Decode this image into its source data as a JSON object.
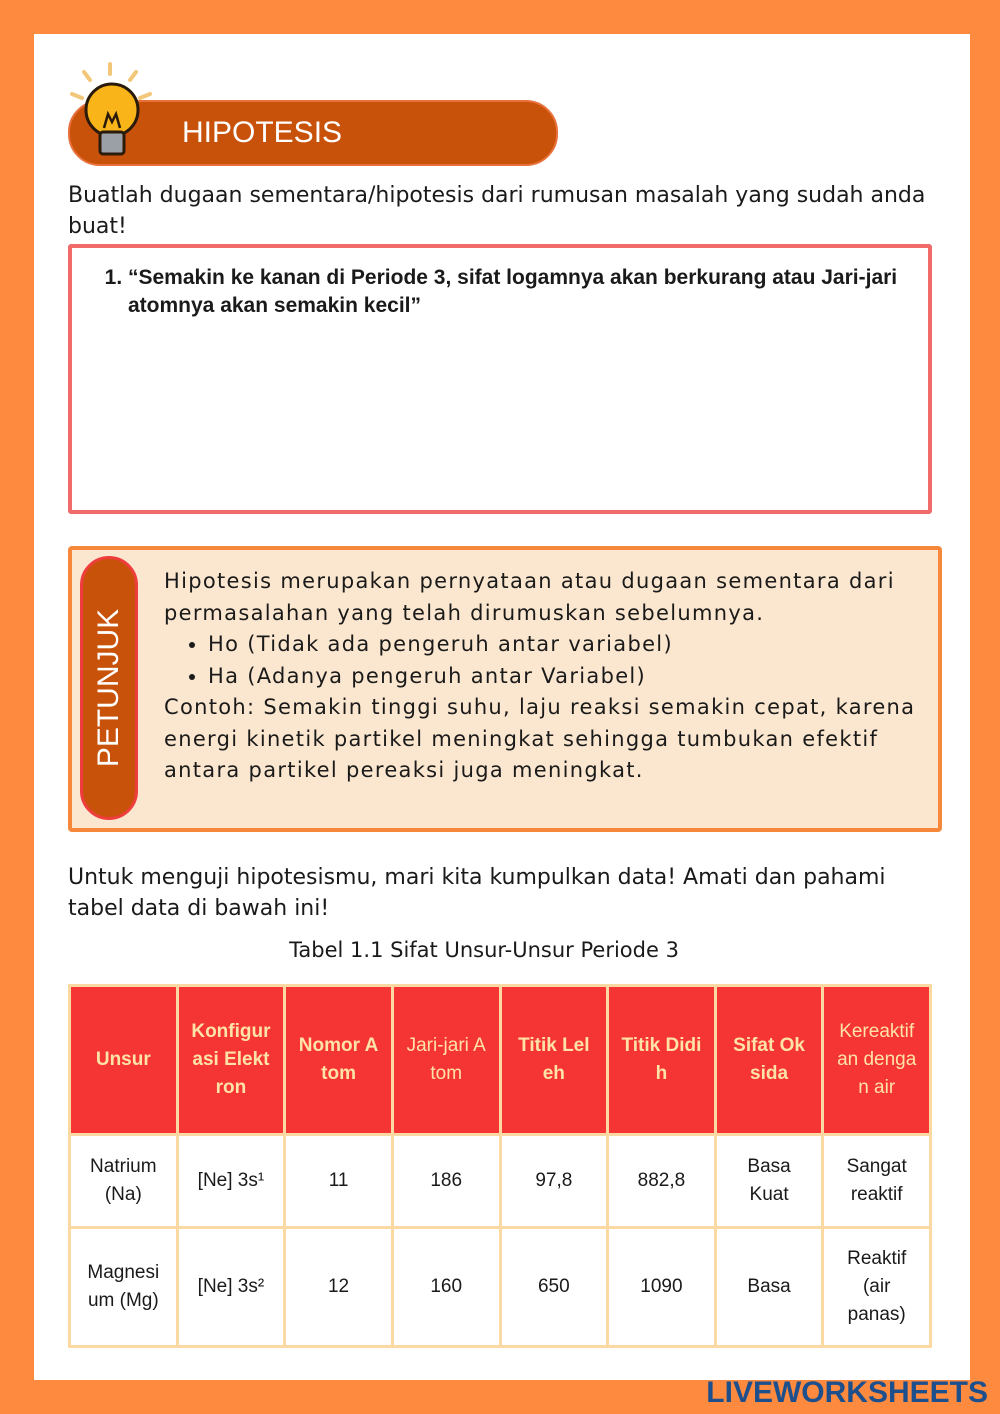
{
  "header": {
    "title": "HIPOTESIS"
  },
  "instruction": "Buatlah dugaan sementara/hipotesis dari rumusan masalah yang sudah anda buat!",
  "answer": {
    "items": [
      "“Semakin ke kanan di Periode 3, sifat logamnya akan berkurang atau Jari-jari atomnya akan semakin kecil”"
    ]
  },
  "hint": {
    "label": "PETUNJUK",
    "paragraph": "Hipotesis merupakan pernyataan atau dugaan sementara dari permasalahan yang telah dirumuskan sebelumnya.",
    "bullets": [
      "Ho (Tidak ada pengeruh antar variabel)",
      "Ha (Adanya pengeruh antar Variabel)"
    ],
    "example": "Contoh: Semakin tinggi suhu, laju reaksi semakin cepat, karena energi kinetik partikel meningkat sehingga tumbukan efektif antara partikel pereaksi juga meningkat."
  },
  "intro": "Untuk menguji hipotesismu, mari kita kumpulkan data! Amati dan pahami tabel data di bawah ini!",
  "table": {
    "caption": "Tabel 1.1 Sifat Unsur-Unsur Periode 3",
    "header": [
      "Unsur",
      "Konfigurasi Elektron",
      "Nomor Atom",
      "Jari-jari Atom",
      "Titik Leleh",
      "Titik Didih",
      "Sifat Oksida",
      "Kereaktifan dengan air"
    ],
    "rows": [
      [
        "Natrium (Na)",
        "[Ne] 3s¹",
        "11",
        "186",
        "97,8",
        "882,8",
        "Basa Kuat",
        "Sangat reaktif"
      ],
      [
        "Magnesium (Mg)",
        "[Ne] 3s²",
        "12",
        "160",
        "650",
        "1090",
        "Basa",
        "Reaktif (air panas)"
      ]
    ]
  },
  "footer": {
    "watermark": "LIVEWORKSHEETS"
  }
}
